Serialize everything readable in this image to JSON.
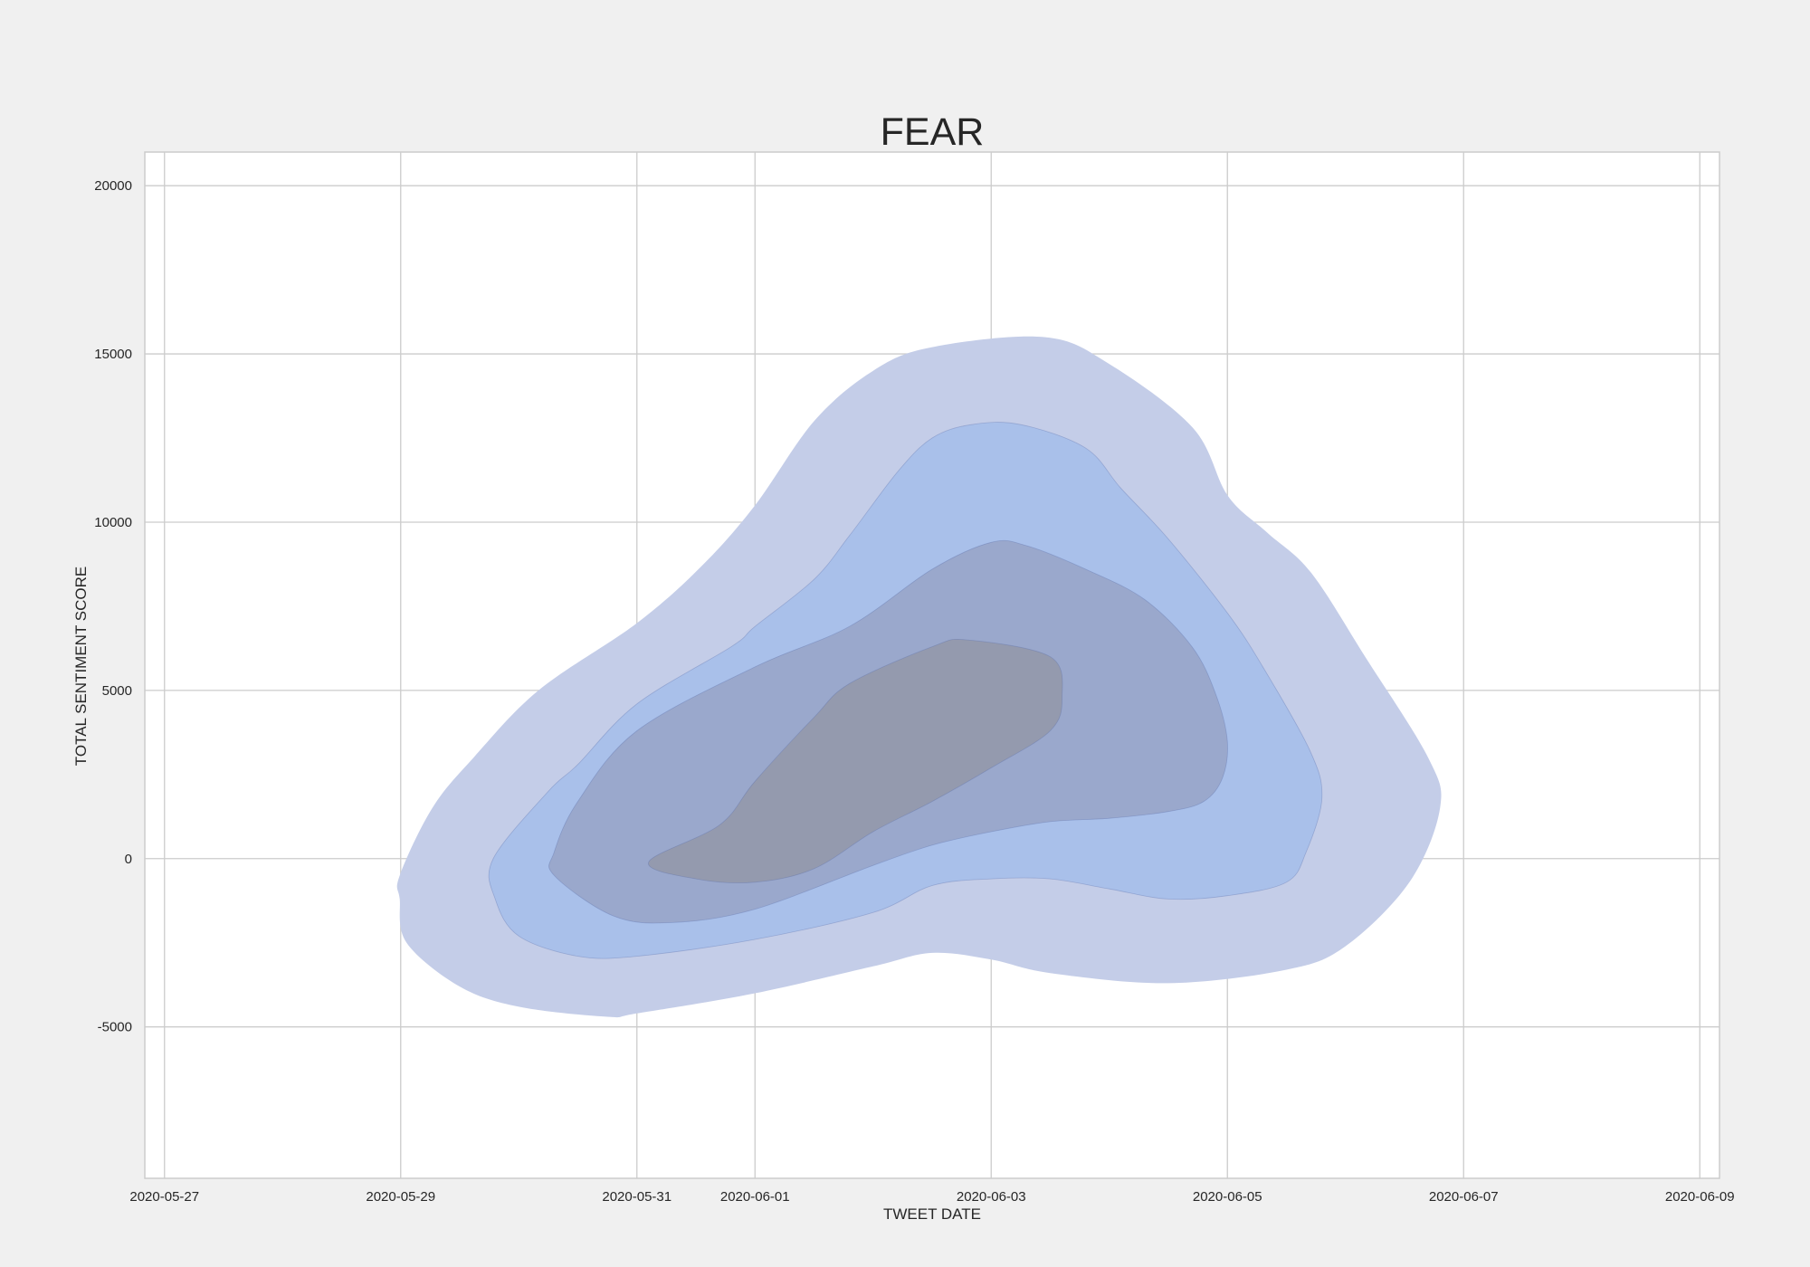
{
  "chart_data": {
    "type": "kde_contour",
    "title": "FEAR",
    "xlabel": "TWEET DATE",
    "ylabel": "TOTAL SENTIMENT SCORE",
    "xlim": [
      "2020-05-26T20:00",
      "2020-06-09T04:00"
    ],
    "ylim": [
      -9500,
      21000
    ],
    "x_ticks": [
      "2020-05-27",
      "2020-05-29",
      "2020-05-31",
      "2020-06-01",
      "2020-06-03",
      "2020-06-05",
      "2020-06-07",
      "2020-06-09"
    ],
    "y_ticks": [
      -5000,
      0,
      5000,
      10000,
      15000,
      20000
    ],
    "grid": true,
    "colors": {
      "level_1": "#c4cde8",
      "level_2": "#a9c0ea",
      "level_3": "#9aa8cc",
      "level_4": "#949aae",
      "grid": "#cccccc",
      "text": "#262626",
      "background": "#f0f0f0"
    },
    "levels": [
      {
        "name": "level_1",
        "points": [
          [
            "2020-05-28T23:48",
            -500
          ],
          [
            "2020-05-29T06:24",
            1500
          ],
          [
            "2020-05-29T14:48",
            3000
          ],
          [
            "2020-05-30T04:00",
            5000
          ],
          [
            "2020-05-31T00:00",
            7000
          ],
          [
            "2020-05-31T13:12",
            8700
          ],
          [
            "2020-06-01T00:00",
            10500
          ],
          [
            "2020-06-01T12:00",
            13000
          ],
          [
            "2020-06-02T00:00",
            14500
          ],
          [
            "2020-06-02T12:00",
            15200
          ],
          [
            "2020-06-03T10:48",
            15500
          ],
          [
            "2020-06-04T00:00",
            14700
          ],
          [
            "2020-06-04T17:00",
            12800
          ],
          [
            "2020-06-05T00:00",
            10800
          ],
          [
            "2020-06-05T08:00",
            9700
          ],
          [
            "2020-06-05T17:00",
            8500
          ],
          [
            "2020-06-06T04:00",
            6000
          ],
          [
            "2020-06-06T16:48",
            3000
          ],
          [
            "2020-06-06T19:12",
            1500
          ],
          [
            "2020-06-06T13:00",
            -700
          ],
          [
            "2020-06-06T00:00",
            -2600
          ],
          [
            "2020-06-05T12:00",
            -3300
          ],
          [
            "2020-06-04T12:00",
            -3700
          ],
          [
            "2020-06-03T12:00",
            -3400
          ],
          [
            "2020-06-03T00:00",
            -3000
          ],
          [
            "2020-06-02T12:00",
            -2800
          ],
          [
            "2020-06-02T00:00",
            -3200
          ],
          [
            "2020-06-01T00:00",
            -4000
          ],
          [
            "2020-05-31T00:00",
            -4600
          ],
          [
            "2020-05-30T18:00",
            -4700
          ],
          [
            "2020-05-30T00:00",
            -4400
          ],
          [
            "2020-05-29T12:00",
            -3800
          ],
          [
            "2020-05-29T01:12",
            -2500
          ],
          [
            "2020-05-28T23:48",
            -1200
          ]
        ]
      },
      {
        "name": "level_2",
        "points": [
          [
            "2020-05-29T18:48",
            0
          ],
          [
            "2020-05-30T06:00",
            2000
          ],
          [
            "2020-05-30T12:00",
            2800
          ],
          [
            "2020-05-31T00:00",
            4600
          ],
          [
            "2020-05-31T19:12",
            6300
          ],
          [
            "2020-06-01T00:00",
            6900
          ],
          [
            "2020-06-01T12:00",
            8300
          ],
          [
            "2020-06-01T19:12",
            9600
          ],
          [
            "2020-06-02T05:00",
            11500
          ],
          [
            "2020-06-02T12:00",
            12500
          ],
          [
            "2020-06-02T20:00",
            12900
          ],
          [
            "2020-06-03T06:00",
            12900
          ],
          [
            "2020-06-03T19:12",
            12200
          ],
          [
            "2020-06-04T02:24",
            11000
          ],
          [
            "2020-06-04T12:00",
            9500
          ],
          [
            "2020-06-05T00:00",
            7300
          ],
          [
            "2020-06-05T07:12",
            5700
          ],
          [
            "2020-06-05T16:48",
            3200
          ],
          [
            "2020-06-05T19:12",
            1800
          ],
          [
            "2020-06-05T16:00",
            200
          ],
          [
            "2020-06-05T12:00",
            -700
          ],
          [
            "2020-06-05T00:00",
            -1100
          ],
          [
            "2020-06-04T12:00",
            -1200
          ],
          [
            "2020-06-04T00:00",
            -900
          ],
          [
            "2020-06-03T12:00",
            -600
          ],
          [
            "2020-06-03T00:00",
            -600
          ],
          [
            "2020-06-02T12:00",
            -800
          ],
          [
            "2020-06-02T00:00",
            -1600
          ],
          [
            "2020-06-01T00:00",
            -2400
          ],
          [
            "2020-05-31T00:00",
            -2900
          ],
          [
            "2020-05-30T12:00",
            -2900
          ],
          [
            "2020-05-30T00:00",
            -2300
          ],
          [
            "2020-05-29T19:12",
            -1200
          ]
        ]
      },
      {
        "name": "level_3",
        "points": [
          [
            "2020-05-30T07:12",
            200
          ],
          [
            "2020-05-30T12:00",
            1700
          ],
          [
            "2020-05-31T00:00",
            3800
          ],
          [
            "2020-06-01T00:00",
            5700
          ],
          [
            "2020-06-01T19:12",
            6900
          ],
          [
            "2020-06-02T12:00",
            8600
          ],
          [
            "2020-06-03T00:00",
            9400
          ],
          [
            "2020-06-03T07:12",
            9300
          ],
          [
            "2020-06-03T19:12",
            8600
          ],
          [
            "2020-06-04T07:12",
            7700
          ],
          [
            "2020-06-04T16:48",
            6300
          ],
          [
            "2020-06-04T21:36",
            4900
          ],
          [
            "2020-06-04T23:59",
            3500
          ],
          [
            "2020-06-04T23:00",
            2400
          ],
          [
            "2020-06-04T19:12",
            1700
          ],
          [
            "2020-06-04T12:00",
            1400
          ],
          [
            "2020-06-04T00:00",
            1200
          ],
          [
            "2020-06-03T12:00",
            1100
          ],
          [
            "2020-06-03T00:00",
            800
          ],
          [
            "2020-06-02T12:00",
            400
          ],
          [
            "2020-06-02T00:00",
            -200
          ],
          [
            "2020-06-01T00:00",
            -1500
          ],
          [
            "2020-05-31T07:12",
            -1900
          ],
          [
            "2020-05-30T19:12",
            -1700
          ],
          [
            "2020-05-30T07:12",
            -500
          ]
        ]
      },
      {
        "name": "level_4",
        "points": [
          [
            "2020-05-31T16:48",
            1000
          ],
          [
            "2020-06-01T00:00",
            2300
          ],
          [
            "2020-06-01T12:00",
            4200
          ],
          [
            "2020-06-01T19:12",
            5200
          ],
          [
            "2020-06-02T12:00",
            6300
          ],
          [
            "2020-06-02T19:12",
            6500
          ],
          [
            "2020-06-03T12:00",
            6000
          ],
          [
            "2020-06-03T14:24",
            4800
          ],
          [
            "2020-06-03T12:00",
            3800
          ],
          [
            "2020-06-03T00:00",
            2700
          ],
          [
            "2020-06-02T12:00",
            1700
          ],
          [
            "2020-06-02T00:00",
            800
          ],
          [
            "2020-06-01T12:00",
            -300
          ],
          [
            "2020-06-01T00:00",
            -700
          ],
          [
            "2020-05-31T12:00",
            -600
          ],
          [
            "2020-05-31T02:24",
            -100
          ]
        ]
      }
    ]
  }
}
